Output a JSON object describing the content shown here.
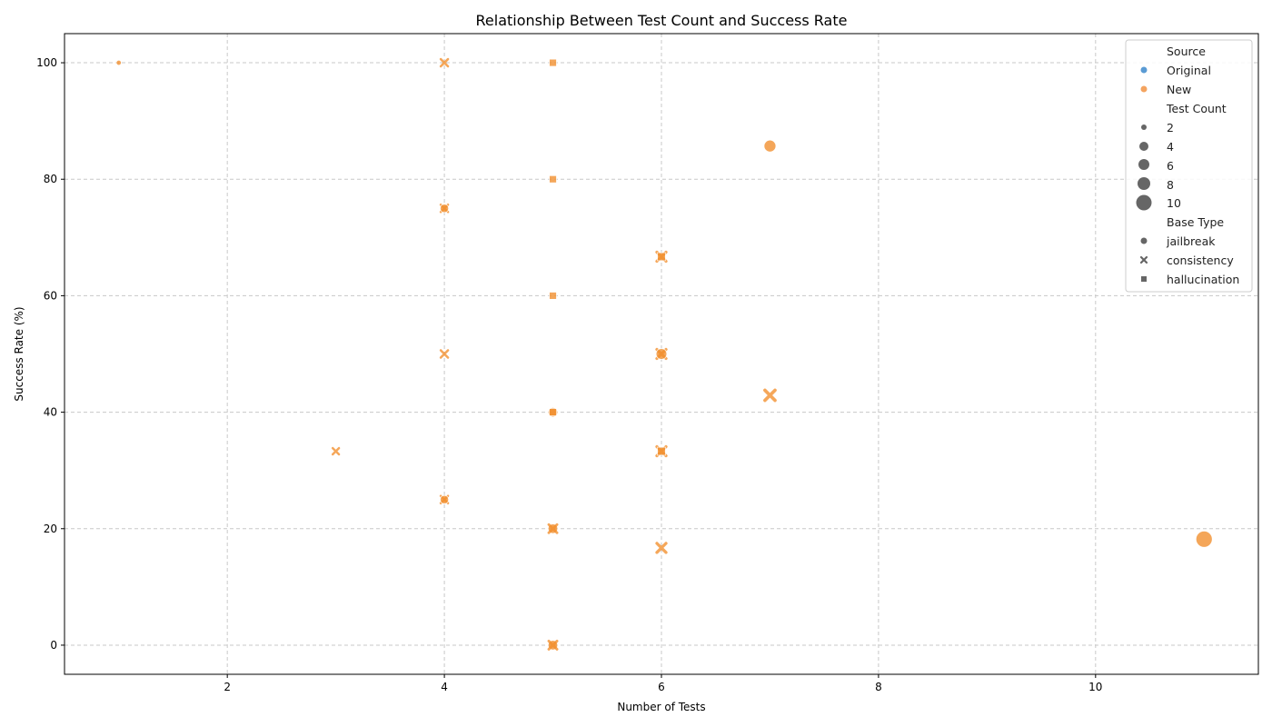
{
  "chart_data": {
    "type": "scatter",
    "title": "Relationship Between Test Count and Success Rate",
    "xlabel": "Number of Tests",
    "ylabel": "Success Rate (%)",
    "xlim": [
      0.5,
      11.5
    ],
    "ylim": [
      -5,
      105
    ],
    "xticks": [
      2,
      4,
      6,
      8,
      10
    ],
    "yticks": [
      0,
      20,
      40,
      60,
      80,
      100
    ],
    "grid": true,
    "legend_position": "top-right",
    "colors": {
      "Original": "#5a9bd4",
      "New": "#f28e2b"
    },
    "legend": {
      "hue_title": "Source",
      "hue_entries": [
        "Original",
        "New"
      ],
      "size_title": "Test Count",
      "size_entries": [
        "2",
        "4",
        "6",
        "8",
        "10"
      ],
      "style_title": "Base Type",
      "style_entries": [
        "jailbreak",
        "consistency",
        "hallucination"
      ]
    },
    "points": [
      {
        "x": 1,
        "y": 100,
        "source": "New",
        "base_type": "jailbreak"
      },
      {
        "x": 4,
        "y": 100,
        "source": "New",
        "base_type": "consistency"
      },
      {
        "x": 5,
        "y": 100,
        "source": "New",
        "base_type": "hallucination"
      },
      {
        "x": 7,
        "y": 85.7,
        "source": "New",
        "base_type": "jailbreak"
      },
      {
        "x": 5,
        "y": 80,
        "source": "New",
        "base_type": "hallucination"
      },
      {
        "x": 4,
        "y": 75,
        "source": "New",
        "base_type": "consistency"
      },
      {
        "x": 4,
        "y": 75,
        "source": "New",
        "base_type": "jailbreak"
      },
      {
        "x": 6,
        "y": 66.7,
        "source": "New",
        "base_type": "consistency"
      },
      {
        "x": 6,
        "y": 66.7,
        "source": "New",
        "base_type": "hallucination"
      },
      {
        "x": 5,
        "y": 60,
        "source": "New",
        "base_type": "hallucination"
      },
      {
        "x": 4,
        "y": 50,
        "source": "New",
        "base_type": "consistency"
      },
      {
        "x": 6,
        "y": 50,
        "source": "New",
        "base_type": "consistency"
      },
      {
        "x": 6,
        "y": 50,
        "source": "New",
        "base_type": "jailbreak"
      },
      {
        "x": 7,
        "y": 42.9,
        "source": "New",
        "base_type": "consistency"
      },
      {
        "x": 5,
        "y": 40,
        "source": "New",
        "base_type": "jailbreak"
      },
      {
        "x": 5,
        "y": 40,
        "source": "New",
        "base_type": "hallucination"
      },
      {
        "x": 3,
        "y": 33.3,
        "source": "New",
        "base_type": "consistency"
      },
      {
        "x": 6,
        "y": 33.3,
        "source": "New",
        "base_type": "consistency"
      },
      {
        "x": 6,
        "y": 33.3,
        "source": "New",
        "base_type": "hallucination"
      },
      {
        "x": 4,
        "y": 25,
        "source": "New",
        "base_type": "consistency"
      },
      {
        "x": 4,
        "y": 25,
        "source": "New",
        "base_type": "jailbreak"
      },
      {
        "x": 5,
        "y": 20,
        "source": "New",
        "base_type": "jailbreak"
      },
      {
        "x": 5,
        "y": 20,
        "source": "New",
        "base_type": "consistency"
      },
      {
        "x": 11,
        "y": 18.2,
        "source": "New",
        "base_type": "jailbreak"
      },
      {
        "x": 6,
        "y": 16.7,
        "source": "New",
        "base_type": "consistency"
      },
      {
        "x": 5,
        "y": 0,
        "source": "New",
        "base_type": "jailbreak"
      },
      {
        "x": 5,
        "y": 0,
        "source": "New",
        "base_type": "consistency"
      }
    ]
  }
}
